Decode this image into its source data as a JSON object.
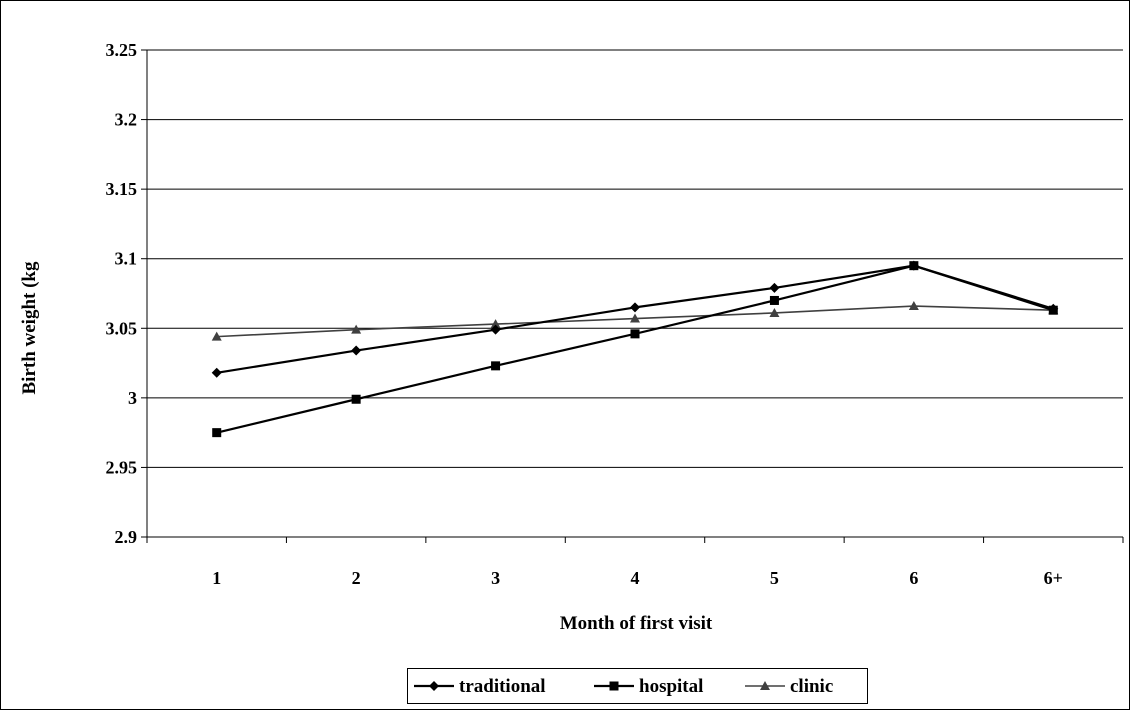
{
  "chart_data": {
    "type": "line",
    "title": "",
    "xlabel": "Month of first visit",
    "ylabel": "Birth weight (kg",
    "categories": [
      "1",
      "2",
      "3",
      "4",
      "5",
      "6",
      "6+"
    ],
    "ylim": [
      2.9,
      3.25
    ],
    "yticks": [
      "3.25",
      "3.2",
      "3.15",
      "3.1",
      "3.05",
      "3",
      "2.95",
      "2.9"
    ],
    "grid": "horizontal",
    "legend": "bottom",
    "series": [
      {
        "name": "traditional",
        "marker": "diamond",
        "color": "#000000",
        "values": [
          3.018,
          3.034,
          3.049,
          3.065,
          3.079,
          3.095,
          3.064
        ]
      },
      {
        "name": "hospital",
        "marker": "square",
        "color": "#000000",
        "values": [
          2.975,
          2.999,
          3.023,
          3.046,
          3.07,
          3.095,
          3.063
        ]
      },
      {
        "name": "clinic",
        "marker": "triangle",
        "color": "#404040",
        "values": [
          3.044,
          3.049,
          3.053,
          3.057,
          3.061,
          3.066,
          3.063
        ]
      }
    ]
  }
}
